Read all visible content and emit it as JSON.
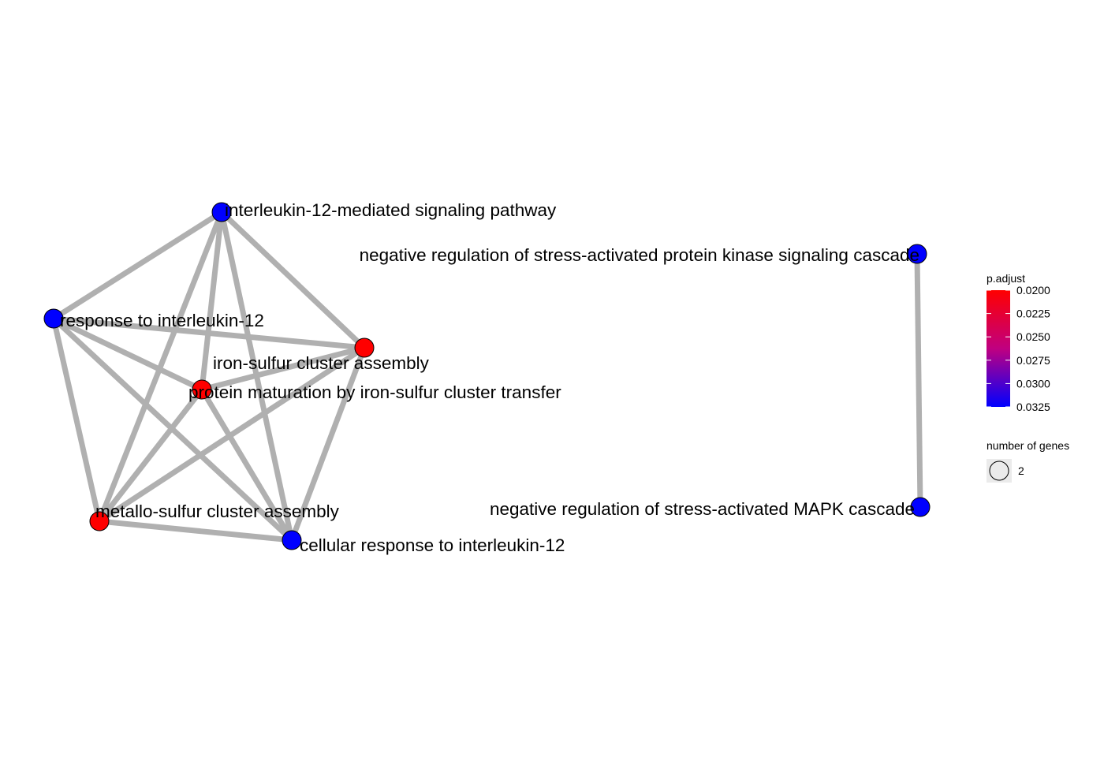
{
  "nodes": [
    {
      "id": "il12_pathway",
      "label": "interleukin-12-mediated signaling pathway",
      "color": "#0000FF"
    },
    {
      "id": "neg_stress_kinase",
      "label": "negative regulation of stress-activated protein kinase signaling cascade",
      "color": "#0000FF"
    },
    {
      "id": "response_il12",
      "label": "response to interleukin-12",
      "color": "#0000FF"
    },
    {
      "id": "fe_s_assembly",
      "label": "iron-sulfur cluster assembly",
      "color": "#FF0000"
    },
    {
      "id": "protein_maturation",
      "label": "protein maturation by iron-sulfur cluster transfer",
      "color": "#FF0000"
    },
    {
      "id": "metallo_s_assembly",
      "label": "metallo-sulfur cluster assembly",
      "color": "#FF0000"
    },
    {
      "id": "cell_response_il12",
      "label": "cellular response to interleukin-12",
      "color": "#0000FF"
    },
    {
      "id": "neg_stress_mapk",
      "label": "negative regulation of stress-activated MAPK cascade",
      "color": "#0000FF"
    }
  ],
  "edges": [
    [
      "il12_pathway",
      "response_il12"
    ],
    [
      "il12_pathway",
      "fe_s_assembly"
    ],
    [
      "il12_pathway",
      "protein_maturation"
    ],
    [
      "il12_pathway",
      "metallo_s_assembly"
    ],
    [
      "il12_pathway",
      "cell_response_il12"
    ],
    [
      "response_il12",
      "fe_s_assembly"
    ],
    [
      "response_il12",
      "protein_maturation"
    ],
    [
      "response_il12",
      "metallo_s_assembly"
    ],
    [
      "response_il12",
      "cell_response_il12"
    ],
    [
      "fe_s_assembly",
      "protein_maturation"
    ],
    [
      "fe_s_assembly",
      "metallo_s_assembly"
    ],
    [
      "fe_s_assembly",
      "cell_response_il12"
    ],
    [
      "protein_maturation",
      "metallo_s_assembly"
    ],
    [
      "protein_maturation",
      "cell_response_il12"
    ],
    [
      "metallo_s_assembly",
      "cell_response_il12"
    ],
    [
      "neg_stress_kinase",
      "neg_stress_mapk"
    ]
  ],
  "legend": {
    "color_title": "p.adjust",
    "color_low": "#0000FF",
    "color_high": "#FF0000",
    "ticks": [
      "0.0200",
      "0.0225",
      "0.0250",
      "0.0275",
      "0.0300",
      "0.0325"
    ],
    "size_title": "number of genes",
    "size_value": "2"
  },
  "colors": {
    "edge": "#B0B0B0",
    "background": "#FFFFFF"
  }
}
